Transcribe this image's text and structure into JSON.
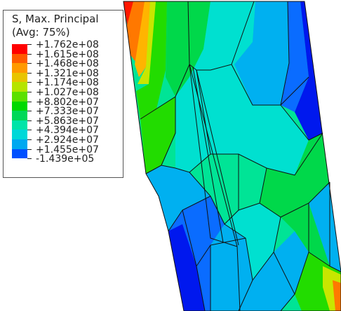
{
  "legend": {
    "title_line1": "S, Max. Principal",
    "title_line2": "(Avg: 75%)",
    "labels": [
      "+1.762e+08",
      "+1.615e+08",
      "+1.468e+08",
      "+1.321e+08",
      "+1.174e+08",
      "+1.027e+08",
      "+8.802e+07",
      "+7.333e+07",
      "+5.863e+07",
      "+4.394e+07",
      "+2.924e+07",
      "+1.455e+07",
      "-1.439e+05"
    ],
    "colors": [
      "#ff0000",
      "#ff5a00",
      "#ff9900",
      "#e8c400",
      "#b5e400",
      "#5be000",
      "#00d800",
      "#00d858",
      "#00e4a8",
      "#00d8d8",
      "#00a8f0",
      "#0050ff",
      "#0000ee"
    ]
  },
  "model": {
    "colors": {
      "red": "#ff1800",
      "orange": "#ff7800",
      "amber": "#ffb400",
      "yellow": "#c8e600",
      "green": "#22dc00",
      "green2": "#00d84a",
      "mint": "#00e496",
      "cyan": "#00e0d0",
      "sky": "#00b0f0",
      "blue": "#0a6cff",
      "navy": "#0018ee"
    }
  }
}
